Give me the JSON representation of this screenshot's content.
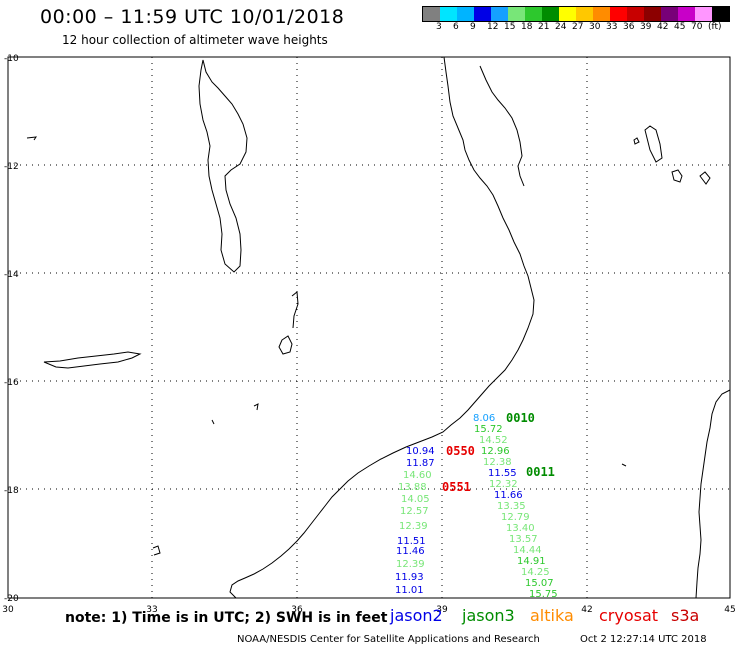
{
  "header": {
    "title": "00:00 – 11:59 UTC 10/01/2018",
    "subtitle": "12 hour collection of altimeter wave heights"
  },
  "legend": {
    "colors": [
      "#808080",
      "#00e5ff",
      "#00b4ff",
      "#0000e6",
      "#15a0ff",
      "#78e678",
      "#2dc82d",
      "#008c00",
      "#ffff00",
      "#ffc800",
      "#ff8c00",
      "#ff0000",
      "#c80000",
      "#8c0000",
      "#780078",
      "#c800c8",
      "#ff96ff",
      "#000000"
    ],
    "labels": [
      "3",
      "6",
      "9",
      "12",
      "15",
      "18",
      "21",
      "24",
      "27",
      "30",
      "33",
      "36",
      "39",
      "42",
      "45",
      "70",
      "(ft)"
    ]
  },
  "map": {
    "lon_labels": [
      "30",
      "33",
      "36",
      "39",
      "42",
      "45"
    ],
    "lat_labels": [
      "-10",
      "-12",
      "-14",
      "-16",
      "-18",
      "-20"
    ]
  },
  "wave_heights": [
    {
      "text": "8.06",
      "color": "#15a0ff"
    },
    {
      "text": "15.72",
      "color": "#2dc82d"
    },
    {
      "text": "14.52",
      "color": "#78e678"
    },
    {
      "text": "12.96",
      "color": "#2dc82d"
    },
    {
      "text": "12.38",
      "color": "#78e678"
    },
    {
      "text": "11.55",
      "color": "#0000e6"
    },
    {
      "text": "12.32",
      "color": "#78e678"
    },
    {
      "text": "11.66",
      "color": "#0000e6"
    },
    {
      "text": "13.35",
      "color": "#78e678"
    },
    {
      "text": "12.79",
      "color": "#78e678"
    },
    {
      "text": "13.40",
      "color": "#78e678"
    },
    {
      "text": "13.57",
      "color": "#78e678"
    },
    {
      "text": "14.44",
      "color": "#78e678"
    },
    {
      "text": "14.91",
      "color": "#2dc82d"
    },
    {
      "text": "14.25",
      "color": "#78e678"
    },
    {
      "text": "15.07",
      "color": "#2dc82d"
    },
    {
      "text": "15.75",
      "color": "#2dc82d"
    },
    {
      "text": "10.94",
      "color": "#0000e6"
    },
    {
      "text": "11.87",
      "color": "#0000e6"
    },
    {
      "text": "14.60",
      "color": "#78e678"
    },
    {
      "text": "13.88",
      "color": "#78e678"
    },
    {
      "text": "14.05",
      "color": "#78e678"
    },
    {
      "text": "12.57",
      "color": "#78e678"
    },
    {
      "text": "12.39",
      "color": "#78e678"
    },
    {
      "text": "11.51",
      "color": "#0000e6"
    },
    {
      "text": "11.46",
      "color": "#0000e6"
    },
    {
      "text": "12.39",
      "color": "#78e678"
    },
    {
      "text": "11.93",
      "color": "#0000e6"
    },
    {
      "text": "11.01",
      "color": "#0000e6"
    }
  ],
  "pass_times": [
    {
      "text": "0010",
      "color": "#008c00"
    },
    {
      "text": "0011",
      "color": "#008c00"
    },
    {
      "text": "0550",
      "color": "#e60000"
    },
    {
      "text": "0551",
      "color": "#e60000"
    }
  ],
  "note": "note: 1) Time is in UTC; 2) SWH is in feet",
  "satellites": [
    {
      "name": "jason2",
      "color": "#0000e6"
    },
    {
      "name": "jason3",
      "color": "#008c00"
    },
    {
      "name": "altika",
      "color": "#ff8c00"
    },
    {
      "name": "cryosat",
      "color": "#e60000"
    },
    {
      "name": "s3a",
      "color": "#c80000"
    }
  ],
  "footer": {
    "credit": "NOAA/NESDIS Center for Satellite Applications and Research",
    "generated": "Oct  2 12:27:14 UTC 2018"
  }
}
